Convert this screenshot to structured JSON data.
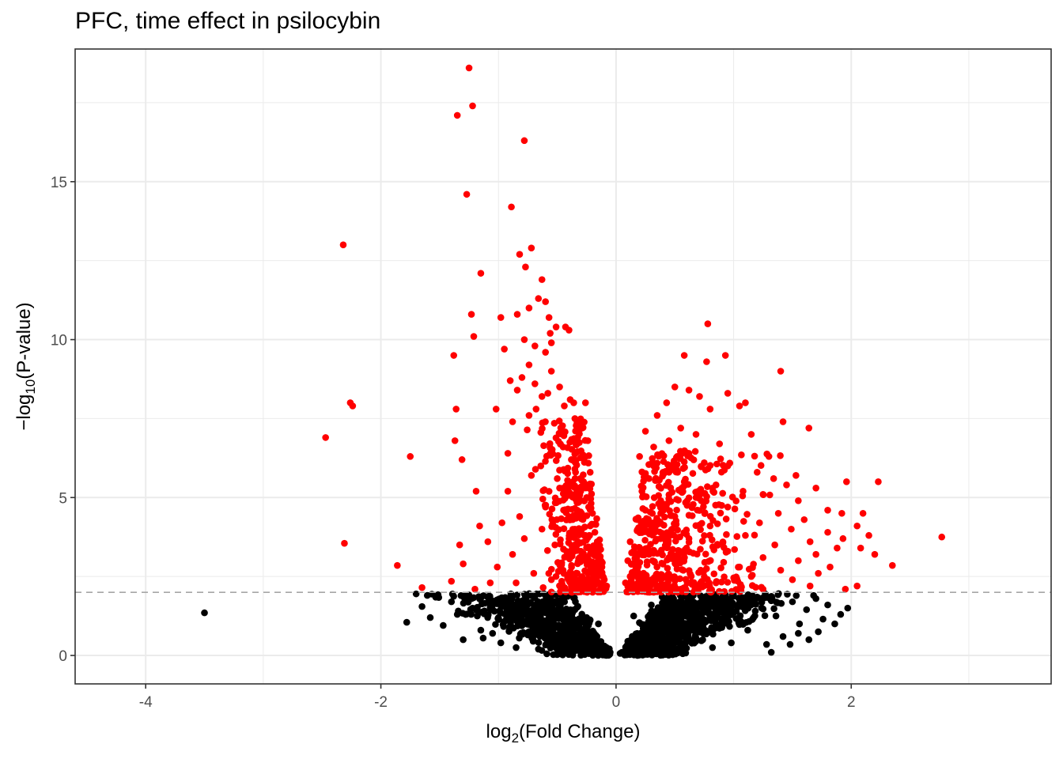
{
  "chart_data": {
    "type": "scatter",
    "title": "PFC, time effect in psilocybin",
    "xlabel": {
      "prefix": "log",
      "sub": "2",
      "suffix": "(Fold Change)"
    },
    "ylabel": {
      "prefix": "−log",
      "sub": "10",
      "suffix": "(P-value)"
    },
    "xlim": [
      -4.6,
      3.7
    ],
    "ylim": [
      -0.9,
      19.2
    ],
    "x_ticks": [
      -4,
      -2,
      0,
      2
    ],
    "x_tick_labels": [
      "-4",
      "-2",
      "0",
      "2"
    ],
    "y_ticks": [
      0,
      5,
      10,
      15
    ],
    "y_tick_labels": [
      "0",
      "5",
      "10",
      "15"
    ],
    "threshold": {
      "y": 2.0,
      "style": "dashed",
      "color": "#a6a6a6"
    },
    "grid": true,
    "colors": {
      "significant": "#ff0000",
      "not_significant": "#000000"
    },
    "series": [
      {
        "color": "#ff0000",
        "points": [
          [
            -1.25,
            18.6
          ],
          [
            -1.22,
            17.4
          ],
          [
            -1.35,
            17.1
          ],
          [
            -0.78,
            16.3
          ],
          [
            -1.27,
            14.6
          ],
          [
            -0.89,
            14.2
          ],
          [
            -2.32,
            13.0
          ],
          [
            -0.72,
            12.9
          ],
          [
            -0.82,
            12.7
          ],
          [
            -0.77,
            12.3
          ],
          [
            -1.15,
            12.1
          ],
          [
            -0.63,
            11.9
          ],
          [
            -0.66,
            11.3
          ],
          [
            -0.6,
            11.2
          ],
          [
            -0.74,
            11.0
          ],
          [
            -0.84,
            10.8
          ],
          [
            -1.23,
            10.8
          ],
          [
            -0.57,
            10.7
          ],
          [
            -0.98,
            10.7
          ],
          [
            -0.43,
            10.4
          ],
          [
            -0.51,
            10.4
          ],
          [
            -0.4,
            10.3
          ],
          [
            -0.56,
            10.2
          ],
          [
            -1.21,
            10.1
          ],
          [
            -0.78,
            10.0
          ],
          [
            -0.55,
            9.9
          ],
          [
            -0.69,
            9.8
          ],
          [
            -0.95,
            9.7
          ],
          [
            -0.6,
            9.6
          ],
          [
            -1.38,
            9.5
          ],
          [
            -0.74,
            9.2
          ],
          [
            -0.55,
            9.0
          ],
          [
            -0.8,
            8.8
          ],
          [
            -0.9,
            8.7
          ],
          [
            -0.69,
            8.6
          ],
          [
            -0.48,
            8.5
          ],
          [
            -0.84,
            8.4
          ],
          [
            -0.58,
            8.3
          ],
          [
            -0.63,
            8.2
          ],
          [
            -0.39,
            8.1
          ],
          [
            -0.26,
            8.0
          ],
          [
            -0.36,
            8.0
          ],
          [
            -0.44,
            7.9
          ],
          [
            -0.68,
            7.8
          ],
          [
            -1.36,
            7.8
          ],
          [
            -1.02,
            7.8
          ],
          [
            -0.74,
            7.6
          ],
          [
            -0.88,
            7.4
          ],
          [
            -0.35,
            7.5
          ],
          [
            -0.3,
            7.3
          ],
          [
            -2.24,
            7.9
          ],
          [
            -2.26,
            8.0
          ],
          [
            -2.47,
            6.9
          ],
          [
            -1.37,
            6.8
          ],
          [
            -1.75,
            6.3
          ],
          [
            -1.31,
            6.2
          ],
          [
            -0.92,
            6.4
          ],
          [
            -0.55,
            6.5
          ],
          [
            -0.45,
            6.6
          ],
          [
            -0.24,
            6.8
          ],
          [
            -0.64,
            6.0
          ],
          [
            -0.35,
            5.9
          ],
          [
            -0.22,
            5.8
          ],
          [
            -0.5,
            5.6
          ],
          [
            -0.72,
            5.7
          ],
          [
            -1.19,
            5.2
          ],
          [
            -0.92,
            5.2
          ],
          [
            -0.42,
            5.2
          ],
          [
            -0.3,
            4.9
          ],
          [
            -0.6,
            4.7
          ],
          [
            -0.82,
            4.4
          ],
          [
            -0.4,
            4.4
          ],
          [
            -0.2,
            4.5
          ],
          [
            -1.16,
            4.1
          ],
          [
            -0.97,
            4.2
          ],
          [
            -0.63,
            4.0
          ],
          [
            -0.35,
            4.0
          ],
          [
            -0.18,
            3.9
          ],
          [
            -0.78,
            3.7
          ],
          [
            -0.52,
            3.5
          ],
          [
            -2.31,
            3.55
          ],
          [
            -1.33,
            3.5
          ],
          [
            -1.09,
            3.6
          ],
          [
            -0.88,
            3.2
          ],
          [
            -0.3,
            3.3
          ],
          [
            -0.15,
            3.2
          ],
          [
            -1.3,
            2.9
          ],
          [
            -1.86,
            2.85
          ],
          [
            -1.01,
            2.8
          ],
          [
            -0.7,
            2.6
          ],
          [
            -0.45,
            2.7
          ],
          [
            -0.24,
            2.6
          ],
          [
            -0.12,
            2.8
          ],
          [
            -1.4,
            2.35
          ],
          [
            -1.65,
            2.15
          ],
          [
            -1.07,
            2.3
          ],
          [
            -0.85,
            2.3
          ],
          [
            -0.55,
            2.4
          ],
          [
            -0.1,
            2.4
          ],
          [
            -0.08,
            2.2
          ],
          [
            -1.2,
            2.1
          ],
          [
            -0.62,
            2.15
          ],
          [
            -0.38,
            2.2
          ],
          [
            -0.2,
            2.1
          ],
          [
            -0.33,
            2.6
          ],
          [
            -0.27,
            3.8
          ],
          [
            -0.22,
            4.1
          ],
          [
            -0.4,
            3.7
          ],
          [
            -0.33,
            4.6
          ],
          [
            -0.25,
            5.0
          ],
          [
            -0.48,
            5.3
          ],
          [
            -0.28,
            5.5
          ],
          [
            -0.38,
            6.2
          ],
          [
            -0.3,
            5.2
          ],
          [
            -0.16,
            3.6
          ],
          [
            -0.13,
            3.0
          ],
          [
            -0.18,
            2.9
          ],
          [
            0.78,
            10.5
          ],
          [
            0.93,
            9.5
          ],
          [
            0.58,
            9.5
          ],
          [
            1.4,
            9.0
          ],
          [
            0.77,
            9.3
          ],
          [
            0.5,
            8.5
          ],
          [
            0.62,
            8.4
          ],
          [
            0.71,
            8.2
          ],
          [
            0.43,
            8.0
          ],
          [
            0.95,
            8.3
          ],
          [
            1.1,
            8.0
          ],
          [
            1.05,
            7.9
          ],
          [
            0.8,
            7.8
          ],
          [
            0.35,
            7.6
          ],
          [
            1.42,
            7.4
          ],
          [
            0.55,
            7.2
          ],
          [
            1.64,
            7.2
          ],
          [
            0.25,
            7.1
          ],
          [
            0.68,
            7.0
          ],
          [
            1.15,
            7.0
          ],
          [
            0.45,
            6.8
          ],
          [
            0.88,
            6.7
          ],
          [
            0.32,
            6.6
          ],
          [
            0.62,
            6.4
          ],
          [
            1.3,
            6.3
          ],
          [
            0.2,
            6.3
          ],
          [
            0.75,
            6.1
          ],
          [
            0.95,
            6.0
          ],
          [
            0.4,
            5.8
          ],
          [
            1.2,
            5.8
          ],
          [
            1.53,
            5.7
          ],
          [
            1.34,
            5.6
          ],
          [
            0.28,
            5.6
          ],
          [
            0.58,
            5.5
          ],
          [
            1.96,
            5.5
          ],
          [
            2.23,
            5.5
          ],
          [
            0.85,
            5.4
          ],
          [
            1.45,
            5.4
          ],
          [
            1.7,
            5.3
          ],
          [
            1.08,
            5.2
          ],
          [
            0.22,
            5.2
          ],
          [
            1.25,
            5.1
          ],
          [
            0.68,
            5.0
          ],
          [
            1.55,
            4.9
          ],
          [
            0.38,
            4.9
          ],
          [
            0.95,
            4.7
          ],
          [
            1.8,
            4.6
          ],
          [
            1.92,
            4.5
          ],
          [
            2.1,
            4.5
          ],
          [
            1.38,
            4.5
          ],
          [
            0.5,
            4.4
          ],
          [
            1.6,
            4.3
          ],
          [
            0.18,
            4.3
          ],
          [
            1.22,
            4.2
          ],
          [
            0.8,
            4.1
          ],
          [
            2.05,
            4.1
          ],
          [
            1.49,
            4.0
          ],
          [
            0.3,
            4.0
          ],
          [
            1.8,
            3.9
          ],
          [
            1.1,
            3.8
          ],
          [
            2.77,
            3.75
          ],
          [
            2.15,
            3.8
          ],
          [
            1.93,
            3.7
          ],
          [
            0.62,
            3.7
          ],
          [
            1.65,
            3.6
          ],
          [
            1.35,
            3.5
          ],
          [
            0.12,
            3.6
          ],
          [
            1.88,
            3.4
          ],
          [
            2.08,
            3.4
          ],
          [
            0.95,
            3.3
          ],
          [
            1.7,
            3.2
          ],
          [
            2.2,
            3.2
          ],
          [
            1.25,
            3.1
          ],
          [
            0.45,
            3.1
          ],
          [
            1.55,
            3.0
          ],
          [
            0.1,
            3.0
          ],
          [
            2.35,
            2.85
          ],
          [
            1.82,
            2.8
          ],
          [
            1.05,
            2.8
          ],
          [
            1.4,
            2.7
          ],
          [
            0.72,
            2.7
          ],
          [
            1.72,
            2.6
          ],
          [
            1.15,
            2.5
          ],
          [
            0.35,
            2.5
          ],
          [
            1.5,
            2.4
          ],
          [
            0.85,
            2.3
          ],
          [
            1.65,
            2.2
          ],
          [
            2.05,
            2.2
          ],
          [
            0.08,
            2.3
          ],
          [
            1.25,
            2.1
          ],
          [
            0.55,
            2.1
          ],
          [
            0.22,
            2.2
          ],
          [
            1.95,
            2.1
          ],
          [
            0.28,
            3.2
          ],
          [
            0.38,
            4.5
          ],
          [
            0.45,
            5.8
          ],
          [
            0.32,
            6.0
          ],
          [
            0.52,
            6.3
          ],
          [
            0.25,
            4.6
          ],
          [
            0.15,
            3.3
          ],
          [
            0.6,
            3.4
          ],
          [
            0.7,
            5.2
          ],
          [
            0.42,
            3.8
          ],
          [
            0.18,
            2.7
          ],
          [
            0.12,
            2.5
          ]
        ]
      },
      {
        "color": "#000000",
        "points": [
          [
            -3.5,
            1.35
          ],
          [
            -1.78,
            1.05
          ],
          [
            -1.7,
            1.95
          ],
          [
            -1.65,
            1.55
          ],
          [
            -1.52,
            1.85
          ],
          [
            -1.47,
            0.95
          ],
          [
            -1.4,
            1.7
          ],
          [
            -1.35,
            1.3
          ],
          [
            -1.28,
            1.9
          ],
          [
            -1.22,
            1.5
          ],
          [
            -1.15,
            0.8
          ],
          [
            -1.13,
            0.55
          ],
          [
            -1.08,
            1.75
          ],
          [
            -1.0,
            1.2
          ],
          [
            -0.98,
            0.4
          ],
          [
            -0.95,
            1.6
          ],
          [
            -0.9,
            0.9
          ],
          [
            -0.85,
            0.25
          ],
          [
            -0.8,
            1.4
          ],
          [
            -0.75,
            0.65
          ],
          [
            -0.7,
            1.85
          ],
          [
            -0.66,
            0.2
          ],
          [
            -0.62,
            1.1
          ],
          [
            -0.55,
            0.5
          ],
          [
            -0.5,
            1.65
          ],
          [
            -0.45,
            0.15
          ],
          [
            -0.4,
            0.95
          ],
          [
            -0.35,
            1.45
          ],
          [
            -0.3,
            0.35
          ],
          [
            -0.25,
            1.2
          ],
          [
            -0.2,
            0.6
          ],
          [
            -0.15,
            1.0
          ],
          [
            -0.1,
            0.3
          ],
          [
            -0.05,
            0.1
          ],
          [
            0.05,
            0.1
          ],
          [
            0.1,
            0.45
          ],
          [
            0.15,
            1.25
          ],
          [
            0.22,
            0.3
          ],
          [
            0.3,
            1.6
          ],
          [
            0.38,
            0.7
          ],
          [
            0.45,
            1.9
          ],
          [
            0.52,
            0.2
          ],
          [
            0.6,
            1.3
          ],
          [
            0.68,
            0.55
          ],
          [
            0.75,
            1.75
          ],
          [
            0.82,
            0.25
          ],
          [
            0.9,
            1.05
          ],
          [
            0.98,
            0.4
          ],
          [
            1.05,
            1.55
          ],
          [
            1.12,
            0.8
          ],
          [
            1.2,
            1.85
          ],
          [
            1.28,
            0.35
          ],
          [
            1.32,
            0.1
          ],
          [
            1.36,
            1.25
          ],
          [
            1.42,
            0.6
          ],
          [
            1.5,
            1.7
          ],
          [
            1.56,
            1.0
          ],
          [
            1.62,
            1.45
          ],
          [
            1.68,
            1.9
          ],
          [
            1.72,
            0.75
          ],
          [
            1.76,
            1.15
          ],
          [
            1.8,
            1.6
          ],
          [
            1.86,
            1.0
          ],
          [
            1.91,
            1.3
          ],
          [
            1.97,
            1.5
          ],
          [
            1.55,
            0.7
          ],
          [
            1.64,
            0.5
          ],
          [
            1.48,
            0.35
          ],
          [
            1.7,
            1.8
          ],
          [
            -1.58,
            1.2
          ],
          [
            -1.3,
            0.5
          ],
          [
            -1.18,
            1.25
          ],
          [
            -1.05,
            0.7
          ],
          [
            -0.92,
            1.3
          ]
        ]
      }
    ]
  }
}
